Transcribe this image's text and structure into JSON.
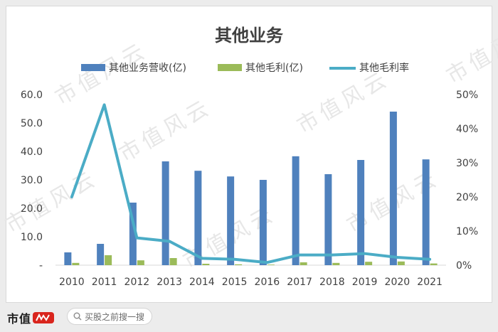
{
  "watermark_text": "市值风云",
  "chart_data": {
    "type": "bar+line",
    "title": "其他业务",
    "categories": [
      "2010",
      "2011",
      "2012",
      "2013",
      "2014",
      "2015",
      "2016",
      "2017",
      "2018",
      "2019",
      "2020",
      "2021"
    ],
    "series": [
      {
        "name": "其他业务营收(亿)",
        "type": "bar",
        "axis": "left",
        "color": "#4f81bd",
        "values": [
          4.5,
          7.5,
          22.0,
          36.5,
          33.2,
          31.2,
          30.0,
          38.3,
          32.0,
          37.0,
          54.0,
          37.2
        ]
      },
      {
        "name": "其他毛利(亿)",
        "type": "bar",
        "axis": "left",
        "color": "#9bbb59",
        "values": [
          0.8,
          3.5,
          1.7,
          2.5,
          0.5,
          0.3,
          0.2,
          1.0,
          0.8,
          1.2,
          1.3,
          0.6
        ]
      },
      {
        "name": "其他毛利率",
        "type": "line",
        "axis": "right",
        "color": "#4bacc6",
        "values": [
          0.2,
          0.47,
          0.08,
          0.07,
          0.02,
          0.017,
          0.008,
          0.03,
          0.03,
          0.034,
          0.023,
          0.017
        ]
      }
    ],
    "left_axis": {
      "min": 0,
      "max": 60,
      "ticks": [
        "-",
        "10.0",
        "20.0",
        "30.0",
        "40.0",
        "50.0",
        "60.0"
      ]
    },
    "right_axis": {
      "min": 0,
      "max": 0.5,
      "ticks": [
        "0%",
        "10%",
        "20%",
        "30%",
        "40%",
        "50%"
      ]
    },
    "legend_position": "top",
    "grid": false
  },
  "footer": {
    "brand": "市值",
    "search_placeholder": "买股之前搜一搜"
  }
}
